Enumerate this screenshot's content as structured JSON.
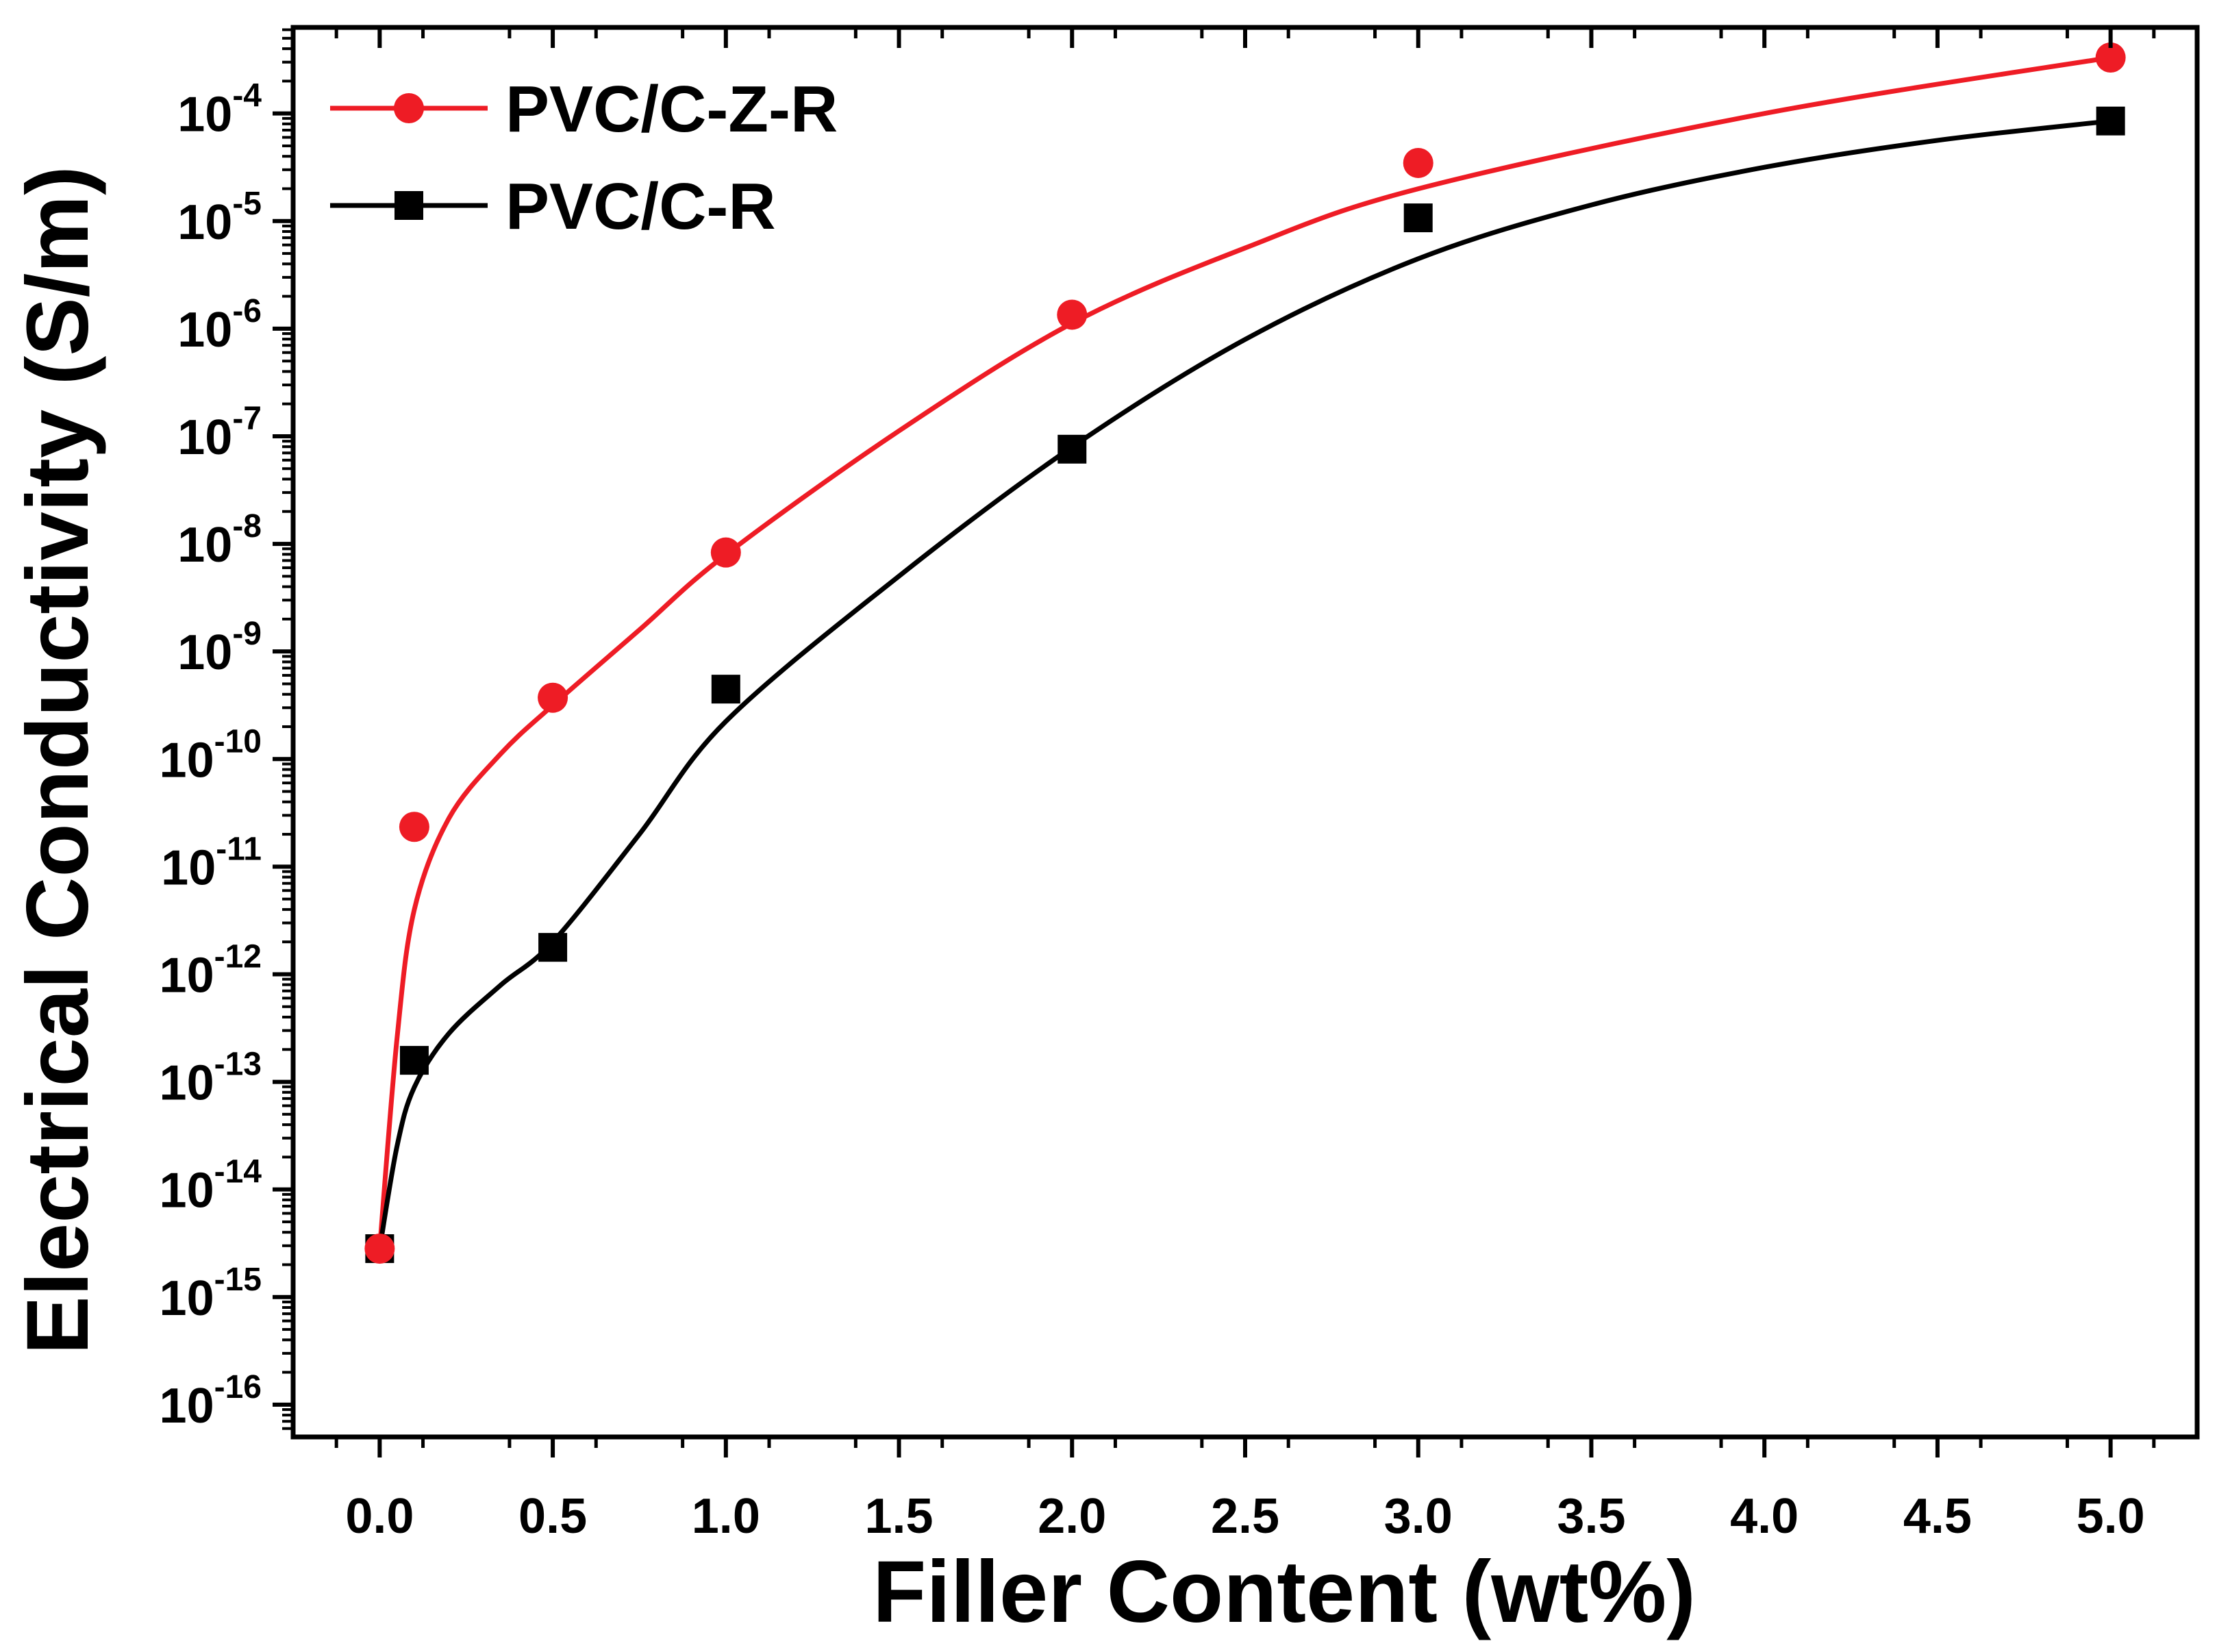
{
  "chart_data": {
    "type": "line",
    "title": "",
    "xlabel": "Filler Content (wt%)",
    "ylabel": "Electrical Conductivity (S/m)",
    "xlim": [
      -0.25,
      5.25
    ],
    "ylim_log10": [
      -16.3,
      -3.2
    ],
    "y_scale": "log",
    "x_ticks": [
      0.0,
      0.5,
      1.0,
      1.5,
      2.0,
      2.5,
      3.0,
      3.5,
      4.0,
      4.5,
      5.0
    ],
    "x_tick_labels": [
      "0.0",
      "0.5",
      "1.0",
      "1.5",
      "2.0",
      "2.5",
      "3.0",
      "3.5",
      "4.0",
      "4.5",
      "5.0"
    ],
    "y_tick_exponents": [
      -16,
      -15,
      -14,
      -13,
      -12,
      -11,
      -10,
      -9,
      -8,
      -7,
      -6,
      -5,
      -4
    ],
    "y_tick_labels": [
      {
        "base": "10",
        "exp": "-16"
      },
      {
        "base": "10",
        "exp": "-15"
      },
      {
        "base": "10",
        "exp": "-14"
      },
      {
        "base": "10",
        "exp": "-13"
      },
      {
        "base": "10",
        "exp": "-12"
      },
      {
        "base": "10",
        "exp": "-11"
      },
      {
        "base": "10",
        "exp": "-10"
      },
      {
        "base": "10",
        "exp": "-9"
      },
      {
        "base": "10",
        "exp": "-8"
      },
      {
        "base": "10",
        "exp": "-7"
      },
      {
        "base": "10",
        "exp": "-6"
      },
      {
        "base": "10",
        "exp": "-5"
      },
      {
        "base": "10",
        "exp": "-4"
      }
    ],
    "legend_position": "top-left",
    "series": [
      {
        "name": "PVC/C-Z-R",
        "color": "#ee1c25",
        "marker": "circle",
        "x": [
          0.0,
          0.1,
          0.5,
          1.0,
          2.0,
          3.0,
          5.0
        ],
        "y_log10": [
          -14.55,
          -10.63,
          -9.43,
          -8.08,
          -5.87,
          -4.46,
          -3.48
        ],
        "fit_x": [
          0.0,
          0.05,
          0.1,
          0.2,
          0.35,
          0.5,
          0.75,
          1.0,
          1.5,
          2.0,
          2.5,
          3.0,
          4.0,
          5.0
        ],
        "fit_y_log10": [
          -14.55,
          -12.6,
          -11.4,
          -10.55,
          -9.95,
          -9.5,
          -8.8,
          -8.1,
          -6.95,
          -5.95,
          -5.25,
          -4.7,
          -4.0,
          -3.48
        ]
      },
      {
        "name": "PVC/C-R",
        "color": "#000000",
        "marker": "square",
        "x": [
          0.0,
          0.1,
          0.5,
          1.0,
          2.0,
          3.0,
          5.0
        ],
        "y_log10": [
          -14.55,
          -12.8,
          -11.75,
          -9.35,
          -7.12,
          -4.97,
          -4.07
        ],
        "fit_x": [
          0.0,
          0.05,
          0.1,
          0.2,
          0.35,
          0.5,
          0.75,
          1.0,
          1.5,
          2.0,
          2.5,
          3.0,
          3.5,
          4.0,
          4.5,
          5.0
        ],
        "fit_y_log10": [
          -14.55,
          -13.6,
          -13.05,
          -12.55,
          -12.1,
          -11.7,
          -10.7,
          -9.65,
          -8.3,
          -7.1,
          -6.1,
          -5.35,
          -4.85,
          -4.5,
          -4.25,
          -4.07
        ]
      }
    ]
  }
}
